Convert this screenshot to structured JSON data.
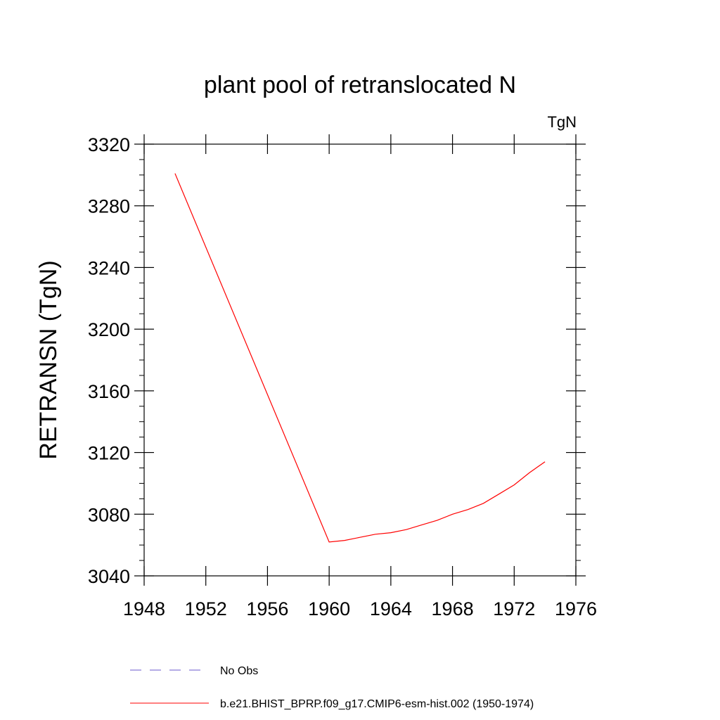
{
  "chart_data": {
    "type": "line",
    "title": "plant pool of retranslocated N",
    "units_label": "TgN",
    "ylabel": "RETRANSN  (TgN)",
    "xlabel": "",
    "xlim": [
      1948,
      1976
    ],
    "ylim": [
      3040,
      3320
    ],
    "x_ticks": [
      1948,
      1952,
      1956,
      1960,
      1964,
      1968,
      1972,
      1976
    ],
    "y_ticks": [
      3040,
      3080,
      3120,
      3160,
      3200,
      3240,
      3280,
      3320
    ],
    "x_tick_labels": [
      "1948",
      "1952",
      "1956",
      "1960",
      "1964",
      "1968",
      "1972",
      "1976"
    ],
    "y_tick_labels": [
      "3040",
      "3080",
      "3120",
      "3160",
      "3200",
      "3240",
      "3280",
      "3320"
    ],
    "grid": false,
    "legend_position": "bottom",
    "series": [
      {
        "name": "b.e21.BHIST_BPRP.f09_g17.CMIP6-esm-hist.002 (1950-1974)",
        "color": "#ff0000",
        "dash": "solid",
        "x": [
          1950,
          1960,
          1961,
          1962,
          1963,
          1964,
          1965,
          1966,
          1967,
          1968,
          1969,
          1970,
          1971,
          1972,
          1973,
          1974
        ],
        "y": [
          3301,
          3062,
          3063,
          3065,
          3067,
          3068,
          3070,
          3073,
          3076,
          3080,
          3083,
          3087,
          3093,
          3099,
          3107,
          3114
        ]
      },
      {
        "name": "No Obs",
        "color": "#6a5acd",
        "dash": "dashed",
        "x": [],
        "y": []
      }
    ]
  }
}
